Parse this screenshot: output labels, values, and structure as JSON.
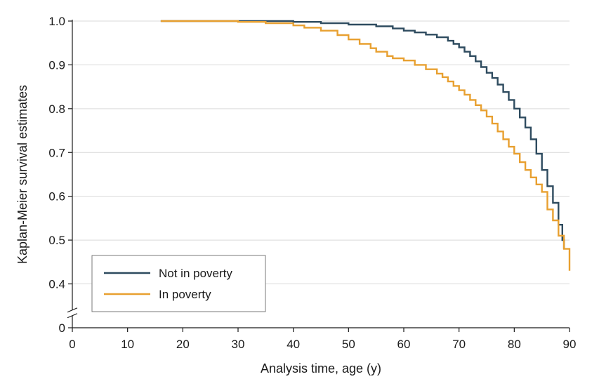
{
  "chart_data": {
    "type": "line",
    "step": true,
    "title": "",
    "xlabel": "Analysis time, age (y)",
    "ylabel": "Kaplan-Meier survival estimates",
    "xlim": [
      0,
      90
    ],
    "ylim": [
      0,
      1.0
    ],
    "y_axis_break": true,
    "x_ticks": [
      "0",
      "10",
      "20",
      "30",
      "40",
      "50",
      "60",
      "70",
      "80",
      "90"
    ],
    "y_ticks": [
      "0",
      "0.4",
      "0.5",
      "0.6",
      "0.7",
      "0.8",
      "0.9",
      "1.0"
    ],
    "grid": "horizontal",
    "legend_position": "bottom-left",
    "series": [
      {
        "name": "Not in poverty",
        "color": "#2e4b5f",
        "points": [
          [
            16,
            1.0
          ],
          [
            30,
            1.0
          ],
          [
            40,
            0.998
          ],
          [
            45,
            0.995
          ],
          [
            50,
            0.992
          ],
          [
            55,
            0.988
          ],
          [
            58,
            0.983
          ],
          [
            60,
            0.978
          ],
          [
            62,
            0.974
          ],
          [
            64,
            0.969
          ],
          [
            66,
            0.963
          ],
          [
            68,
            0.955
          ],
          [
            69,
            0.948
          ],
          [
            70,
            0.94
          ],
          [
            71,
            0.93
          ],
          [
            72,
            0.92
          ],
          [
            73,
            0.908
          ],
          [
            74,
            0.895
          ],
          [
            75,
            0.882
          ],
          [
            76,
            0.87
          ],
          [
            77,
            0.855
          ],
          [
            78,
            0.838
          ],
          [
            79,
            0.82
          ],
          [
            80,
            0.8
          ],
          [
            81,
            0.78
          ],
          [
            82,
            0.757
          ],
          [
            83,
            0.73
          ],
          [
            84,
            0.697
          ],
          [
            85,
            0.66
          ],
          [
            86,
            0.623
          ],
          [
            87,
            0.585
          ],
          [
            88,
            0.535
          ],
          [
            88.7,
            0.5
          ],
          [
            89,
            0.48
          ]
        ]
      },
      {
        "name": "In poverty",
        "color": "#e8a030",
        "points": [
          [
            16,
            1.0
          ],
          [
            30,
            0.998
          ],
          [
            35,
            0.995
          ],
          [
            40,
            0.99
          ],
          [
            42,
            0.985
          ],
          [
            45,
            0.978
          ],
          [
            48,
            0.968
          ],
          [
            50,
            0.958
          ],
          [
            52,
            0.948
          ],
          [
            54,
            0.938
          ],
          [
            55,
            0.93
          ],
          [
            57,
            0.92
          ],
          [
            58,
            0.915
          ],
          [
            60,
            0.91
          ],
          [
            62,
            0.9
          ],
          [
            64,
            0.89
          ],
          [
            66,
            0.88
          ],
          [
            67,
            0.872
          ],
          [
            68,
            0.862
          ],
          [
            69,
            0.852
          ],
          [
            70,
            0.842
          ],
          [
            71,
            0.832
          ],
          [
            72,
            0.82
          ],
          [
            73,
            0.808
          ],
          [
            74,
            0.796
          ],
          [
            75,
            0.782
          ],
          [
            76,
            0.766
          ],
          [
            77,
            0.748
          ],
          [
            78,
            0.73
          ],
          [
            79,
            0.713
          ],
          [
            80,
            0.697
          ],
          [
            81,
            0.678
          ],
          [
            82,
            0.66
          ],
          [
            83,
            0.643
          ],
          [
            84,
            0.627
          ],
          [
            85,
            0.61
          ],
          [
            86,
            0.57
          ],
          [
            87,
            0.545
          ],
          [
            88,
            0.51
          ],
          [
            89,
            0.48
          ],
          [
            90,
            0.43
          ]
        ]
      }
    ]
  }
}
